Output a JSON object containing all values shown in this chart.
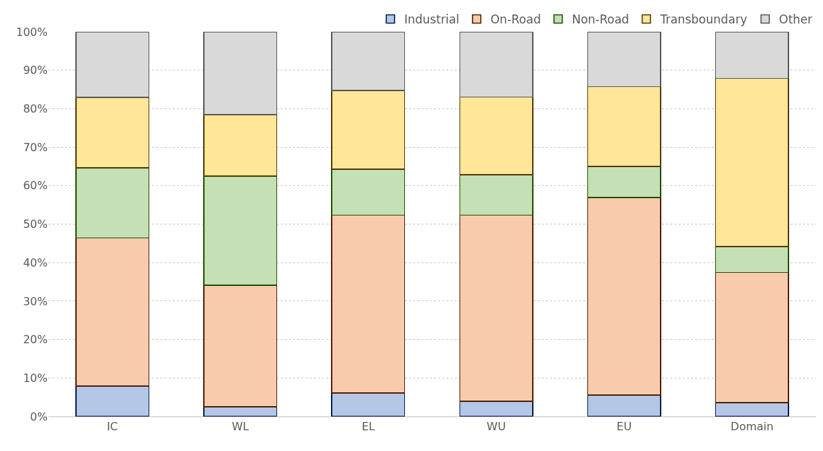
{
  "chart_data": {
    "type": "bar",
    "stacked": true,
    "categories": [
      "IC",
      "WL",
      "EL",
      "WU",
      "EU",
      "Domain"
    ],
    "series": [
      {
        "name": "Industrial",
        "color": "#b4c7e7",
        "values": [
          7.9,
          2.5,
          6.1,
          4.0,
          5.6,
          3.6
        ]
      },
      {
        "name": "On-Road",
        "color": "#f8cbad",
        "values": [
          38.5,
          31.6,
          46.2,
          48.3,
          51.3,
          33.8
        ]
      },
      {
        "name": "Non-Road",
        "color": "#c5e0b4",
        "values": [
          18.2,
          28.4,
          12.0,
          10.5,
          8.1,
          6.8
        ]
      },
      {
        "name": "Transboundary",
        "color": "#ffe699",
        "values": [
          18.3,
          16.0,
          20.4,
          20.2,
          20.7,
          43.7
        ]
      },
      {
        "name": "Other",
        "color": "#d9d9d9",
        "values": [
          17.1,
          21.5,
          15.3,
          17.0,
          14.3,
          12.1
        ]
      }
    ],
    "ylim": [
      0,
      100
    ],
    "yticks": [
      {
        "value": 0,
        "label": "0%"
      },
      {
        "value": 10,
        "label": "10%"
      },
      {
        "value": 20,
        "label": "20%"
      },
      {
        "value": 30,
        "label": "30%"
      },
      {
        "value": 40,
        "label": "40%"
      },
      {
        "value": 50,
        "label": "50%"
      },
      {
        "value": 60,
        "label": "60%"
      },
      {
        "value": 70,
        "label": "70%"
      },
      {
        "value": 80,
        "label": "80%"
      },
      {
        "value": 90,
        "label": "90%"
      },
      {
        "value": 100,
        "label": "100%"
      }
    ],
    "grid": "y",
    "legend": "top right"
  }
}
